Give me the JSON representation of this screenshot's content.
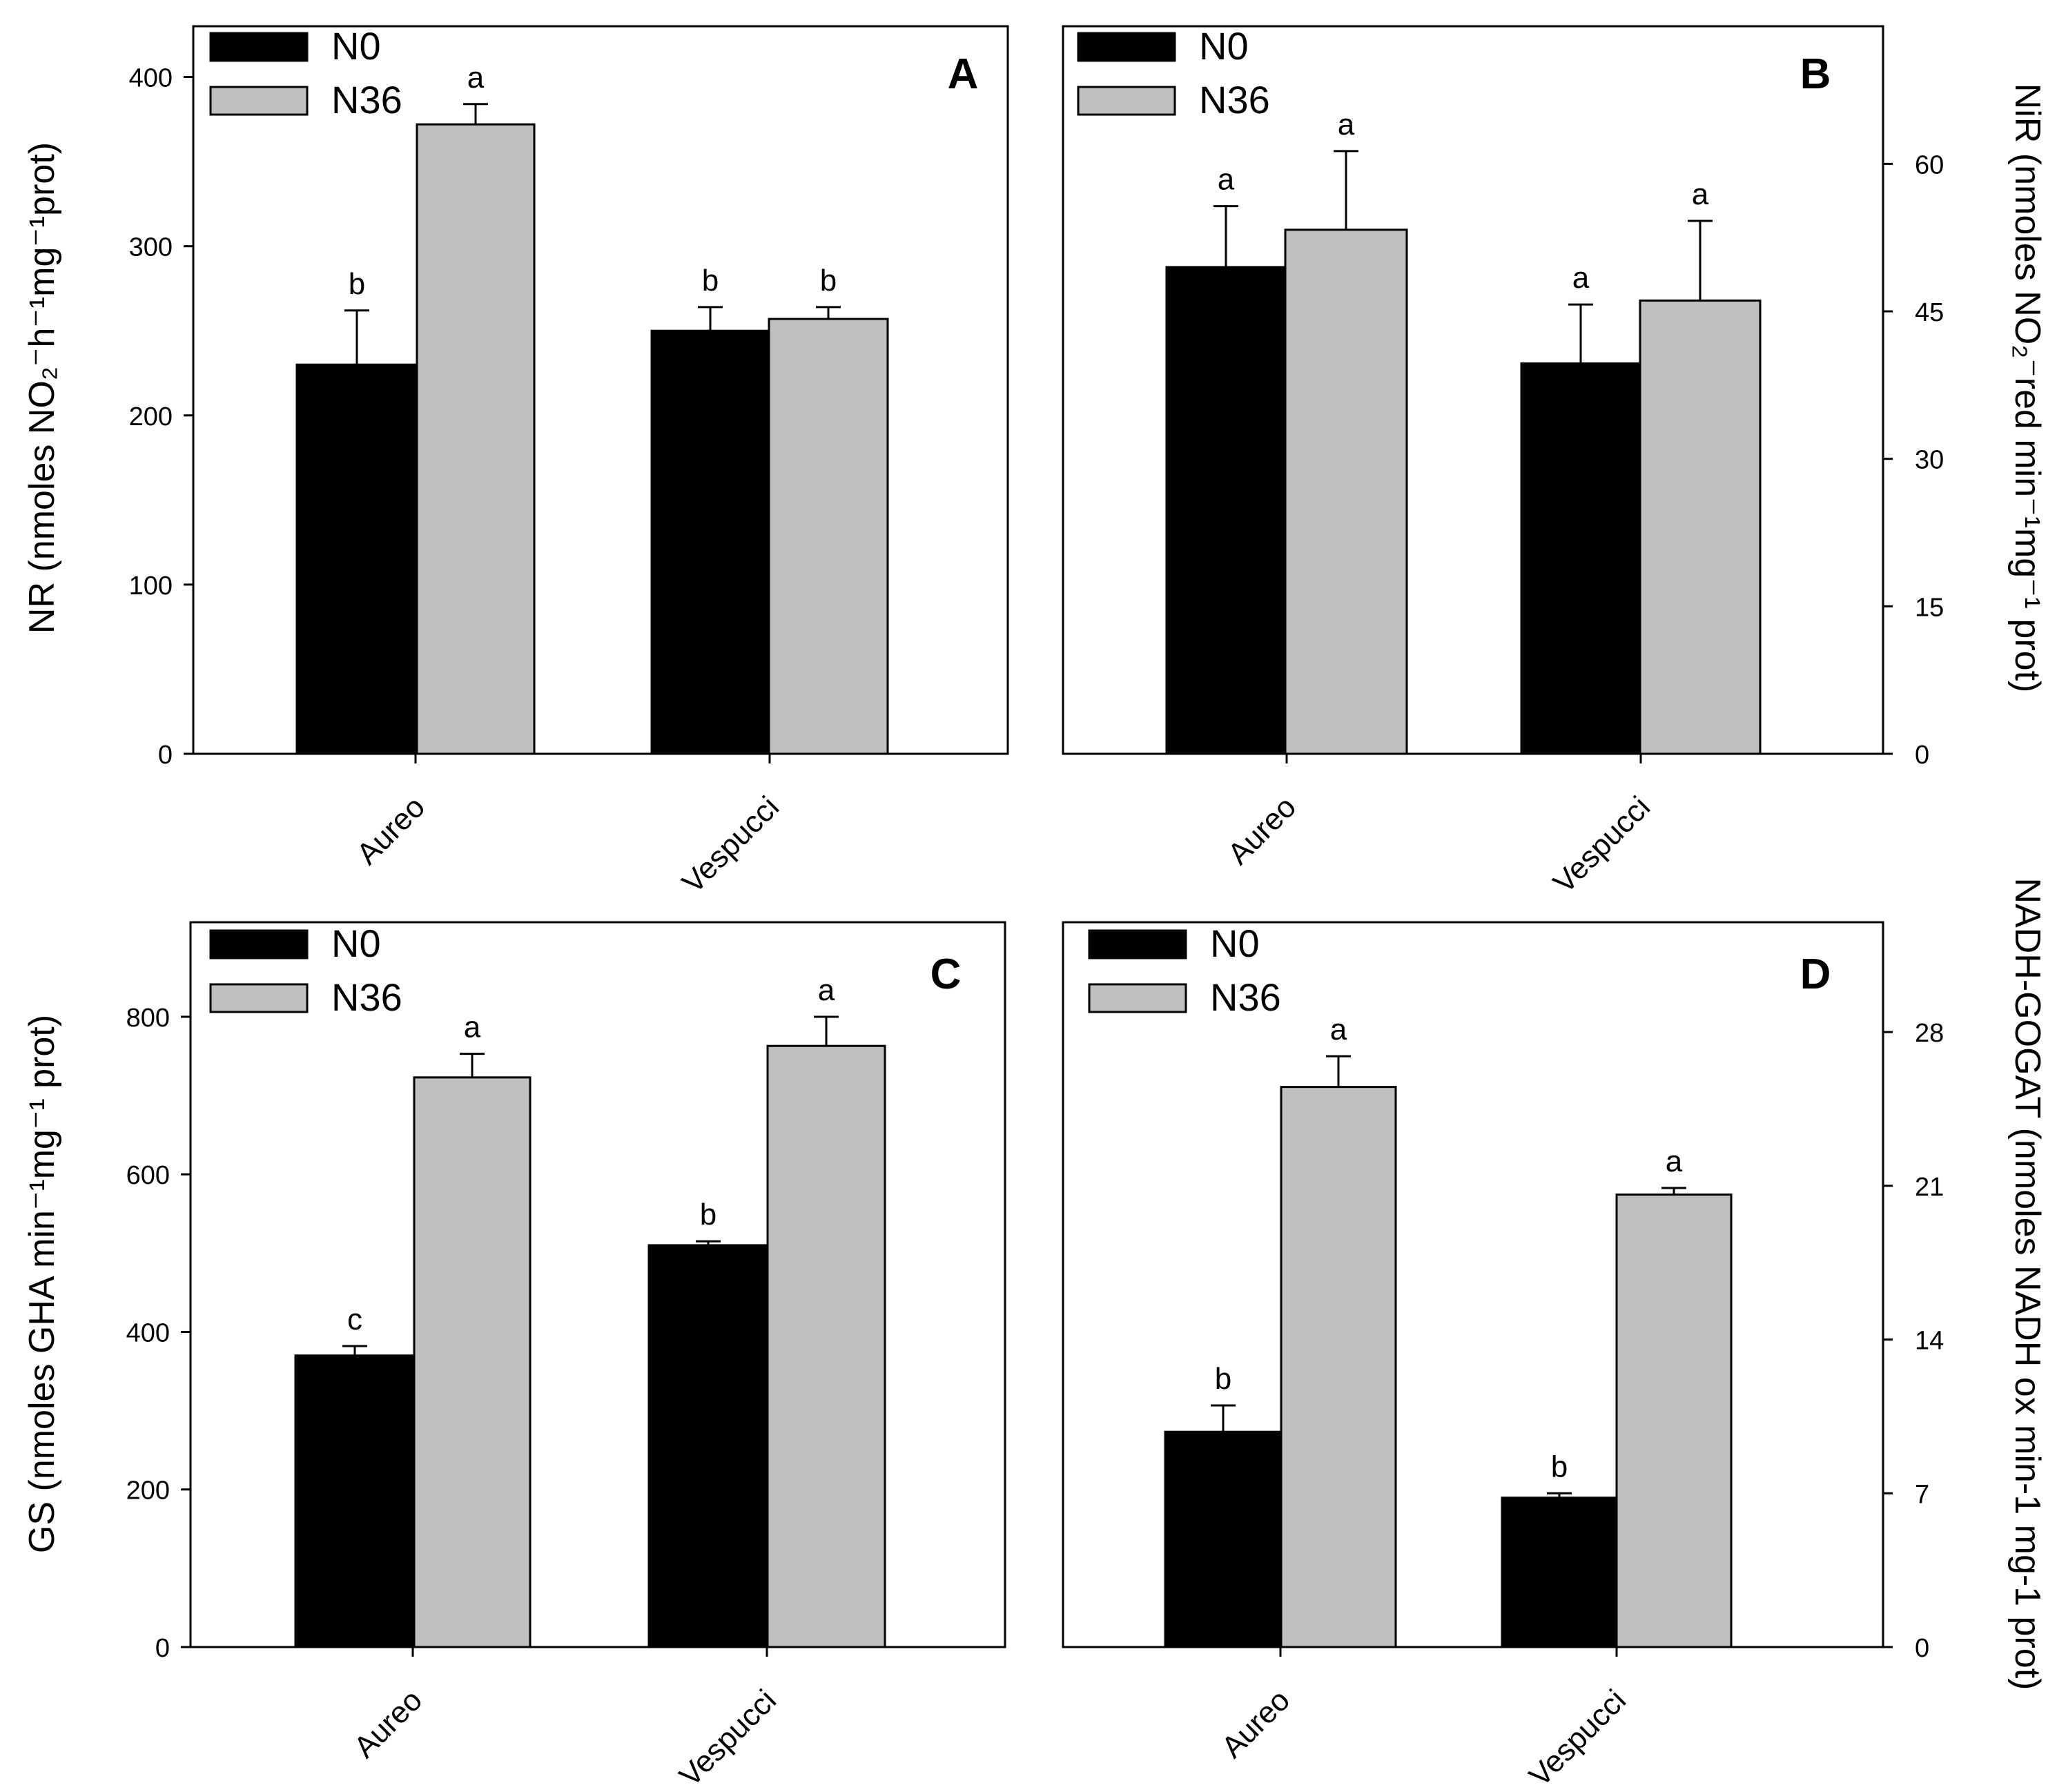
{
  "colors": {
    "N0": "#000000",
    "N36": "#c0c0c0"
  },
  "chart_data": [
    {
      "type": "bar",
      "panel": "A",
      "categories": [
        "Aureo",
        "Vespucci"
      ],
      "series": [
        {
          "name": "N0",
          "values": [
            230,
            250
          ],
          "errors": [
            32,
            14
          ],
          "letters": [
            "b",
            "b"
          ]
        },
        {
          "name": "N36",
          "values": [
            372,
            257
          ],
          "errors": [
            12,
            7
          ],
          "letters": [
            "a",
            "b"
          ]
        }
      ],
      "ylabel": "NR (nmoles NO₂⁻h⁻¹mg⁻¹prot)",
      "ylim": [
        0,
        430
      ],
      "ticks": [
        0,
        100,
        200,
        300,
        400
      ],
      "yaxis_side": "left"
    },
    {
      "type": "bar",
      "panel": "B",
      "categories": [
        "Aureo",
        "Vespucci"
      ],
      "series": [
        {
          "name": "N0",
          "values": [
            49.5,
            39.7
          ],
          "errors": [
            6.2,
            6.0
          ],
          "letters": [
            "a",
            "a"
          ]
        },
        {
          "name": "N36",
          "values": [
            53.3,
            46.1
          ],
          "errors": [
            8.0,
            8.1
          ],
          "letters": [
            "a",
            "a"
          ]
        }
      ],
      "ylabel": "NiR (nmoles NO₂⁻red min⁻¹mg⁻¹ prot)",
      "ylim": [
        0,
        74
      ],
      "ticks": [
        0,
        15,
        30,
        45,
        60
      ],
      "yaxis_side": "right"
    },
    {
      "type": "bar",
      "panel": "C",
      "categories": [
        "Aureo",
        "Vespucci"
      ],
      "series": [
        {
          "name": "N0",
          "values": [
            370,
            510
          ],
          "errors": [
            12,
            5
          ],
          "letters": [
            "c",
            "b"
          ]
        },
        {
          "name": "N36",
          "values": [
            723,
            763
          ],
          "errors": [
            30,
            37
          ],
          "letters": [
            "a",
            "a"
          ]
        }
      ],
      "ylabel": "GS (nmoles GHA min⁻¹mg⁻¹ prot)",
      "ylim": [
        0,
        920
      ],
      "ticks": [
        0,
        200,
        400,
        600,
        800
      ],
      "yaxis_side": "left"
    },
    {
      "type": "bar",
      "panel": "D",
      "categories": [
        "Aureo",
        "Vespucci"
      ],
      "series": [
        {
          "name": "N0",
          "values": [
            9.8,
            6.8
          ],
          "errors": [
            1.2,
            0.2
          ],
          "letters": [
            "b",
            "b"
          ]
        },
        {
          "name": "N36",
          "values": [
            25.5,
            20.6
          ],
          "errors": [
            1.4,
            0.3
          ],
          "letters": [
            "a",
            "a"
          ]
        }
      ],
      "ylabel": "NADH-GOGAT (nmoles NADH ox min-1 mg-1 prot)",
      "ylim": [
        0,
        33
      ],
      "ticks": [
        0,
        7,
        14,
        21,
        28
      ],
      "yaxis_side": "right"
    }
  ]
}
